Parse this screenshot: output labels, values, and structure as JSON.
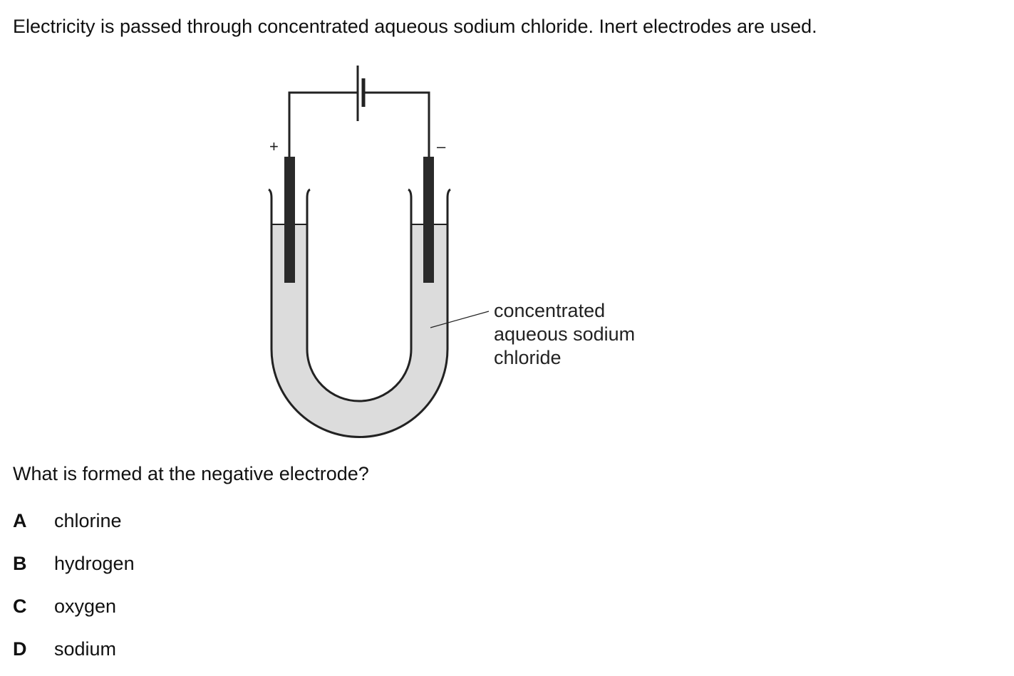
{
  "question": {
    "intro": "Electricity is passed through concentrated aqueous sodium chloride. Inert electrodes are used.",
    "prompt": "What is formed at the negative electrode?",
    "options": [
      {
        "letter": "A",
        "text": "chlorine"
      },
      {
        "letter": "B",
        "text": "hydrogen"
      },
      {
        "letter": "C",
        "text": "oxygen"
      },
      {
        "letter": "D",
        "text": "sodium"
      }
    ]
  },
  "diagram": {
    "positive_sign": "+",
    "negative_sign": "–",
    "label_lines": [
      "concentrated",
      "aqueous sodium",
      "chloride"
    ],
    "liquid_color": "#dcdcdc",
    "electrode_color": "#2a2a2a"
  }
}
